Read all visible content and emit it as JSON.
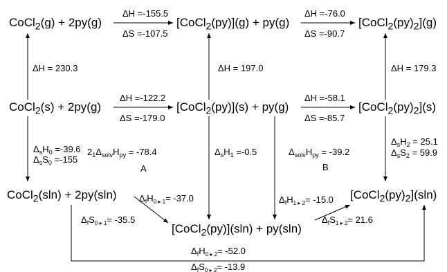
{
  "species": {
    "cocl2_g": "CoCl<sub>2</sub>(g) + 2py(g)",
    "copy_g": "[CoCl<sub>2</sub>(py)](g) + py(g)",
    "copy2_g": "[CoCl<sub>2</sub>(py)<sub>2</sub>](g)",
    "cocl2_s": "CoCl<sub>2</sub>(s) + 2py(g)",
    "copy_s": "[CoCl<sub>2</sub>(py)](s) + py(g)",
    "copy2_s": "[CoCl<sub>2</sub>(py)<sub>2</sub>](s)",
    "cocl2_sln": "CoCl<sub>2</sub>(sln) + 2py(sln)",
    "copy_sln": "[CoCl<sub>2</sub>(py)](sln) + py(sln)",
    "copy2_sln": "[CoCl<sub>2</sub>(py)<sub>2</sub>](sln)"
  },
  "labels": {
    "g_step1_dh": "ΔH =-155.5",
    "g_step1_ds": "ΔS =-107.5",
    "g_step2_dh": "ΔH =-76.0",
    "g_step2_ds": "ΔS =-90.7",
    "s_step1_dh": "ΔH =-122.2",
    "s_step1_ds": "ΔS =-179.0",
    "s_step2_dh": "ΔH =-58.1",
    "s_step2_ds": "ΔS =-85.7",
    "sub_left": "ΔH = 230.3",
    "sub_mid": "ΔH = 197.0",
    "sub_right": "ΔH = 179.3",
    "sol_left_h": "Δ<span class=\"sb\">s</span>H<span class=\"sb\">0</span> =-39.6",
    "sol_left_s": "Δ<span class=\"sb\">s</span>S<span class=\"sb\">0</span>  =-155",
    "solv_a": "2<span class=\"sb\">1</span>Δ<span class=\"sb\">solv</span>H<span class=\"sb\">py</span> = -78.4",
    "box_a": "A",
    "sol_mid_h": "Δ<span class=\"sb\">s</span>H<span class=\"sb\">1</span> =-0.5",
    "solv_b": "Δ<span class=\"sb\">solv</span>H<span class=\"sb\">py</span> = -39.2",
    "box_b": "B",
    "sol_right_h": "Δ<span class=\"sb\">s</span>H<span class=\"sb\">2</span> = 25.1",
    "sol_right_s": "Δ<span class=\"sb\">s</span>S<span class=\"sb\">2</span> = 59.9",
    "f01_h": "Δ<span class=\"sb\">f</span>H<span class=\"sm\">0 ▸ 1</span>= -37.0",
    "f01_s": "Δ<span class=\"sb\">f</span>S<span class=\"sm\">0 ▸ 1</span>= -35.5",
    "f12_h": "Δ<span class=\"sb\">f</span>H<span class=\"sm\">1 ▸ 2</span>= -15.0",
    "f12_s": "Δ<span class=\"sb\">f</span>S<span class=\"sm\">1 ▸ 2</span>= 21.6",
    "f02_h": "Δ<span class=\"sb\">f</span>H<span class=\"sm\">0 ▸ 2</span>= -52.0",
    "f02_s": "Δ<span class=\"sb\">f</span>S<span class=\"sm\">0 ▸ 2</span>= -13.9"
  }
}
